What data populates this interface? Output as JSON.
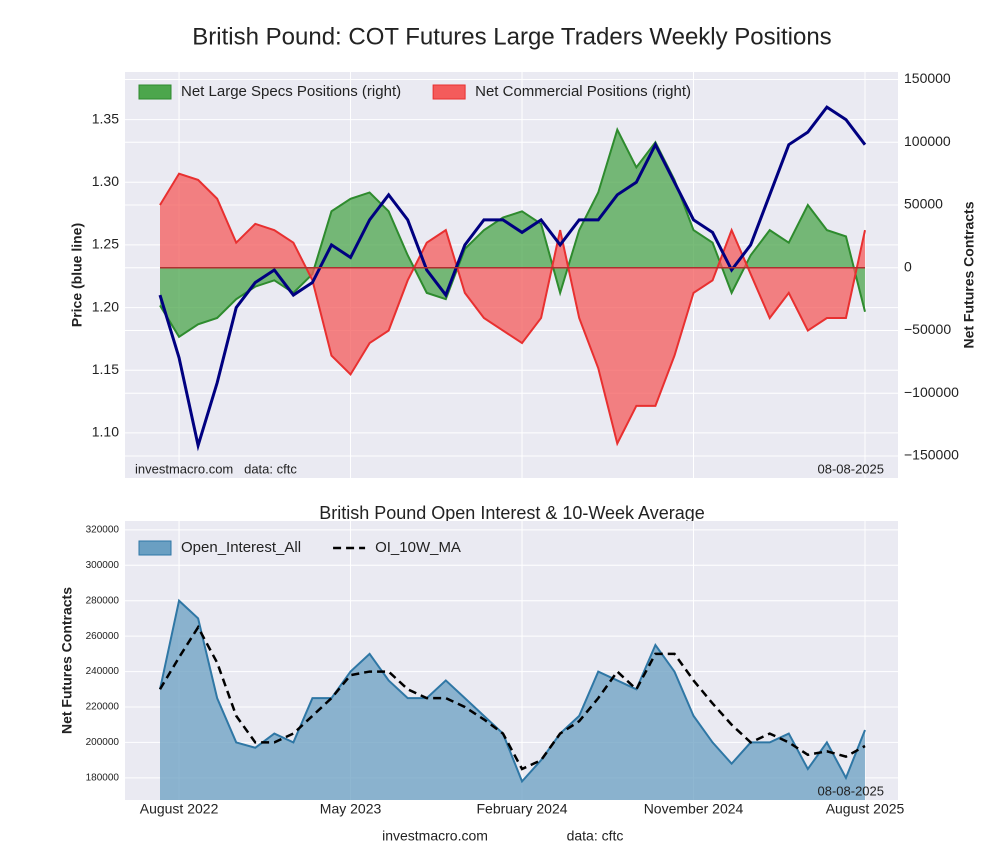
{
  "chart_data": [
    {
      "type": "line",
      "title": "British Pound: COT Futures Large Traders Weekly Positions",
      "y_label": "Price (blue line)",
      "y2_label": "Net Futures Contracts",
      "x": [
        "2022-07",
        "2022-08",
        "2022-09",
        "2022-10",
        "2022-11",
        "2022-12",
        "2023-01",
        "2023-02",
        "2023-03",
        "2023-04",
        "2023-05",
        "2023-06",
        "2023-07",
        "2023-08",
        "2023-09",
        "2023-10",
        "2023-11",
        "2023-12",
        "2024-01",
        "2024-02",
        "2024-03",
        "2024-04",
        "2024-05",
        "2024-06",
        "2024-07",
        "2024-08",
        "2024-09",
        "2024-10",
        "2024-11",
        "2024-12",
        "2025-01",
        "2025-02",
        "2025-03",
        "2025-04",
        "2025-05",
        "2025-06",
        "2025-07",
        "2025-08"
      ],
      "ylim": [
        1.064,
        1.388
      ],
      "yticks": [
        {
          "value": 1.1,
          "label": "1.10"
        },
        1.15,
        {
          "value": 1.2,
          "label": "1.20"
        },
        1.25,
        {
          "value": 1.3,
          "label": "1.30"
        },
        1.35
      ],
      "y2lim": [
        -167500,
        156000
      ],
      "y2ticks": [
        {
          "value": -150000,
          "label": "−150000"
        },
        {
          "value": -100000,
          "label": "−100000"
        },
        {
          "value": -50000,
          "label": "−50000"
        },
        0,
        50000,
        100000,
        150000
      ],
      "grid": true,
      "legend": "upper left",
      "series": [
        {
          "name": "Net Large Specs Positions (right)",
          "style": "area",
          "axis": "y2",
          "color": "#4ca64c",
          "edge": "#2e8b2e",
          "values": [
            -30000,
            -55000,
            -45000,
            -40000,
            -25000,
            -15000,
            -10000,
            -20000,
            -5000,
            45000,
            55000,
            60000,
            45000,
            10000,
            -20000,
            -25000,
            15000,
            30000,
            40000,
            45000,
            35000,
            -20000,
            30000,
            60000,
            110000,
            80000,
            100000,
            70000,
            30000,
            20000,
            -20000,
            10000,
            30000,
            20000,
            50000,
            30000,
            25000,
            -35000
          ]
        },
        {
          "name": "Net Commercial Positions (right)",
          "style": "area",
          "axis": "y2",
          "color": "#f45b5b",
          "edge": "#e83030",
          "values": [
            50000,
            75000,
            70000,
            55000,
            20000,
            35000,
            30000,
            20000,
            -10000,
            -70000,
            -85000,
            -60000,
            -50000,
            -10000,
            20000,
            30000,
            -20000,
            -40000,
            -50000,
            -60000,
            -40000,
            30000,
            -40000,
            -80000,
            -140000,
            -110000,
            -110000,
            -70000,
            -20000,
            -10000,
            30000,
            -5000,
            -40000,
            -20000,
            -50000,
            -40000,
            -40000,
            30000
          ]
        },
        {
          "style": "line",
          "color": "#000080",
          "values": [
            1.21,
            1.16,
            1.09,
            1.14,
            1.2,
            1.22,
            1.23,
            1.21,
            1.22,
            1.25,
            1.24,
            1.27,
            1.29,
            1.27,
            1.23,
            1.21,
            1.25,
            1.27,
            1.27,
            1.26,
            1.27,
            1.25,
            1.27,
            1.27,
            1.29,
            1.3,
            1.33,
            1.3,
            1.27,
            1.26,
            1.23,
            1.25,
            1.29,
            1.33,
            1.34,
            1.36,
            1.35,
            1.33
          ]
        }
      ],
      "annotations": [
        {
          "text": "investmacro.com   data: cftc",
          "position": "lower left"
        },
        {
          "text": "08-08-2025",
          "position": "lower right"
        }
      ]
    },
    {
      "type": "area",
      "title": "British Pound Open Interest & 10-Week Average",
      "y_label": "Net Futures Contracts",
      "x": [
        "2022-07",
        "2022-08",
        "2022-09",
        "2022-10",
        "2022-11",
        "2022-12",
        "2023-01",
        "2023-02",
        "2023-03",
        "2023-04",
        "2023-05",
        "2023-06",
        "2023-07",
        "2023-08",
        "2023-09",
        "2023-10",
        "2023-11",
        "2023-12",
        "2024-01",
        "2024-02",
        "2024-03",
        "2024-04",
        "2024-05",
        "2024-06",
        "2024-07",
        "2024-08",
        "2024-09",
        "2024-10",
        "2024-11",
        "2024-12",
        "2025-01",
        "2025-02",
        "2025-03",
        "2025-04",
        "2025-05",
        "2025-06",
        "2025-07",
        "2025-08"
      ],
      "xticks": [
        {
          "value": "2022-08",
          "label": "August 2022"
        },
        {
          "value": "2023-05",
          "label": "May 2023"
        },
        {
          "value": "2024-02",
          "label": "February 2024"
        },
        {
          "value": "2024-11",
          "label": "November 2024"
        },
        {
          "value": "2025-08",
          "label": "August 2025"
        }
      ],
      "ylim": [
        167500,
        325000
      ],
      "yticks": [
        180000,
        200000,
        220000,
        240000,
        260000,
        280000,
        300000,
        320000
      ],
      "grid": true,
      "legend": "upper left",
      "series": [
        {
          "name": "Open_Interest_All",
          "style": "area",
          "color": "#6a9fc2",
          "edge": "#2f77a5",
          "values": [
            230000,
            280000,
            270000,
            225000,
            200000,
            197000,
            205000,
            200000,
            225000,
            225000,
            240000,
            250000,
            235000,
            225000,
            225000,
            235000,
            225000,
            215000,
            205000,
            178000,
            190000,
            205000,
            215000,
            240000,
            235000,
            230000,
            255000,
            240000,
            215000,
            200000,
            188000,
            200000,
            200000,
            205000,
            185000,
            200000,
            180000,
            207000
          ]
        },
        {
          "name": "OI_10W_MA",
          "style": "dashed",
          "color": "#000000",
          "values": [
            230000,
            248000,
            265000,
            245000,
            215000,
            200000,
            200000,
            205000,
            215000,
            225000,
            238000,
            240000,
            240000,
            230000,
            225000,
            225000,
            220000,
            213000,
            205000,
            185000,
            190000,
            205000,
            212000,
            225000,
            240000,
            230000,
            250000,
            250000,
            235000,
            222000,
            210000,
            200000,
            205000,
            200000,
            193000,
            195000,
            192000,
            198000
          ]
        }
      ],
      "annotations": [
        {
          "text": "08-08-2025",
          "position": "lower right"
        }
      ]
    }
  ],
  "footer": {
    "site": "investmacro.com",
    "source": "data: cftc"
  }
}
